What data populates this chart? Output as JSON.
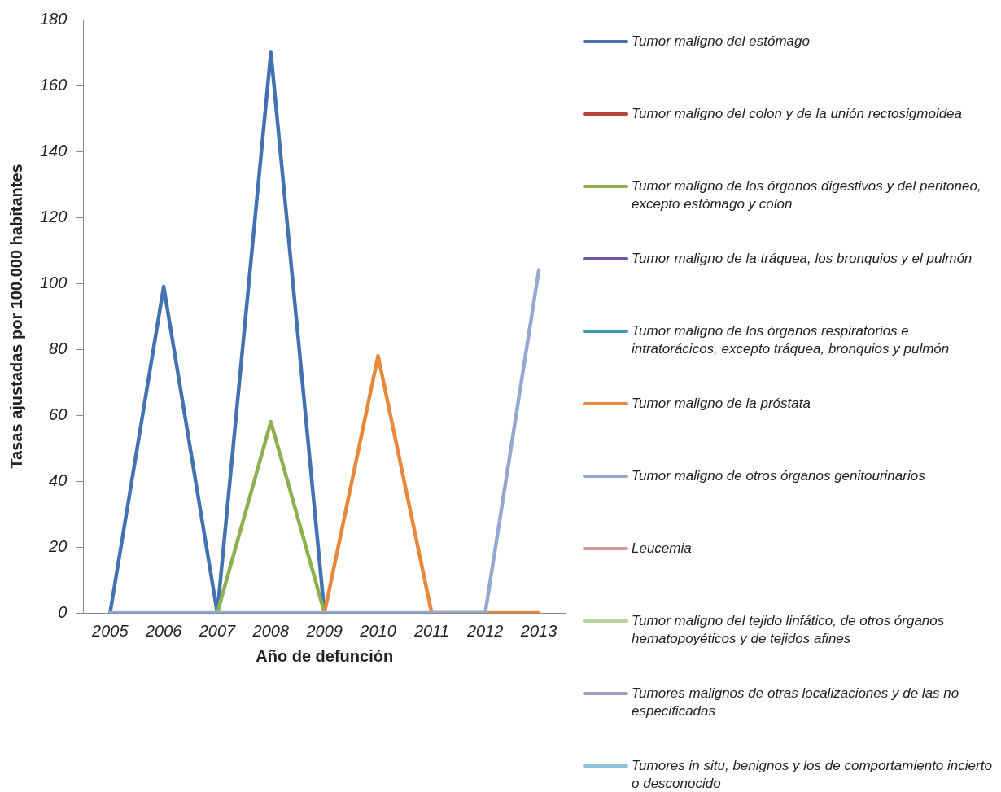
{
  "chart_data": {
    "type": "line",
    "xlabel": "Año de defunción",
    "ylabel": "Tasas ajustadas por 100.000 habitantes",
    "categories": [
      "2005",
      "2006",
      "2007",
      "2008",
      "2009",
      "2010",
      "2011",
      "2012",
      "2013"
    ],
    "ylim": [
      0,
      180
    ],
    "yticks": [
      0,
      20,
      40,
      60,
      80,
      100,
      120,
      140,
      160,
      180
    ],
    "grid": false,
    "legend": "right",
    "marker": "none",
    "line_style": "solid",
    "series": [
      {
        "name": "Tumor maligno del estómago",
        "color": "#4272b0",
        "values": [
          0,
          99,
          0,
          170,
          0,
          null,
          null,
          null,
          null
        ]
      },
      {
        "name": "Tumor maligno del colon y de la unión rectosigmoidea",
        "color": "#b8413e",
        "values": [
          null,
          null,
          null,
          null,
          null,
          null,
          null,
          null,
          null
        ]
      },
      {
        "name": "Tumor maligno de los órganos digestivos y del peritoneo, excepto estómago y colon",
        "color": "#8cb14e",
        "values": [
          null,
          null,
          0,
          58,
          0,
          null,
          null,
          null,
          null
        ]
      },
      {
        "name": "Tumor maligno de la tráquea, los bronquios y el pulmón",
        "color": "#6e58a0",
        "values": [
          null,
          null,
          null,
          null,
          null,
          null,
          null,
          null,
          null
        ]
      },
      {
        "name": "Tumor maligno de los órganos respiratorios e intratorácicos, excepto tráquea, bronquios y pulmón",
        "color": "#3f9bb5",
        "values": [
          null,
          null,
          null,
          null,
          null,
          null,
          null,
          null,
          null
        ]
      },
      {
        "name": "Tumor maligno de la próstata",
        "color": "#e8883a",
        "values": [
          null,
          null,
          null,
          null,
          0,
          78,
          0,
          0,
          0
        ]
      },
      {
        "name": "Tumor maligno de otros órganos genitourinarios",
        "color": "#93a9d1",
        "values": [
          0,
          0,
          0,
          0,
          0,
          0,
          0,
          0,
          104
        ]
      },
      {
        "name": "Leucemia",
        "color": "#d59797",
        "values": [
          null,
          null,
          null,
          null,
          null,
          null,
          null,
          null,
          null
        ]
      },
      {
        "name": "Tumor maligno del tejido linfático, de otros órganos hematopoyéticos y de tejidos afines",
        "color": "#b5d39a",
        "values": [
          null,
          null,
          null,
          null,
          null,
          null,
          null,
          null,
          null
        ]
      },
      {
        "name": "Tumores malignos de otras localizaciones y de las no especificadas",
        "color": "#a89bc4",
        "values": [
          null,
          null,
          null,
          null,
          null,
          null,
          null,
          null,
          null
        ]
      },
      {
        "name": "Tumores in situ, benignos y los de comportamiento incierto o desconocido",
        "color": "#8dc3da",
        "values": [
          null,
          null,
          null,
          null,
          null,
          null,
          null,
          null,
          null
        ]
      }
    ]
  }
}
